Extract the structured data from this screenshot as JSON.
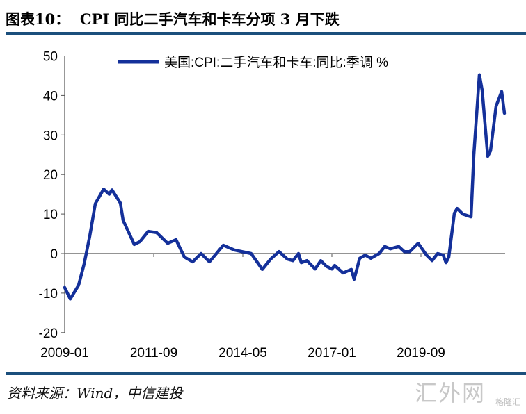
{
  "title": "图表10：  CPI 同比二手汽车和卡车分项 3 月下跌",
  "source": "资料来源：Wind，中信建投",
  "watermark": "汇外网",
  "watermark_sub": "格隆汇",
  "chart_data": {
    "type": "line",
    "title": "",
    "xlabel": "",
    "ylabel": "",
    "ylim": [
      -20,
      50
    ],
    "yticks": [
      50,
      40,
      30,
      20,
      10,
      0,
      -10,
      -20
    ],
    "xticks": [
      "2009-01",
      "2011-09",
      "2014-05",
      "2017-01",
      "2019-09"
    ],
    "xrange": [
      "2009-01",
      "2022-03"
    ],
    "legend_position": "top",
    "grid": false,
    "colors": {
      "line": "#14309a",
      "axis": "#555555",
      "rule": "#1b4f7c"
    },
    "series": [
      {
        "name": "美国:CPI:二手汽车和卡车:同比:季调 %",
        "points": [
          [
            "2009-01",
            -8.6
          ],
          [
            "2009-03",
            -11.5
          ],
          [
            "2009-06",
            -8
          ],
          [
            "2009-08",
            -2.6
          ],
          [
            "2009-10",
            4.4
          ],
          [
            "2009-12",
            12.6
          ],
          [
            "2010-03",
            16.3
          ],
          [
            "2010-05",
            15
          ],
          [
            "2010-06",
            16.1
          ],
          [
            "2010-09",
            12.8
          ],
          [
            "2010-10",
            8.4
          ],
          [
            "2011-02",
            2.3
          ],
          [
            "2011-04",
            3
          ],
          [
            "2011-07",
            5.6
          ],
          [
            "2011-10",
            5.3
          ],
          [
            "2012-02",
            2.6
          ],
          [
            "2012-05",
            3.5
          ],
          [
            "2012-08",
            -0.9
          ],
          [
            "2012-11",
            -2.1
          ],
          [
            "2013-02",
            0
          ],
          [
            "2013-05",
            -2.1
          ],
          [
            "2013-10",
            2.1
          ],
          [
            "2014-02",
            0.9
          ],
          [
            "2014-08",
            0
          ],
          [
            "2014-12",
            -4
          ],
          [
            "2015-03",
            -1.4
          ],
          [
            "2015-06",
            0.5
          ],
          [
            "2015-09",
            -1.4
          ],
          [
            "2015-11",
            -1.8
          ],
          [
            "2016-01",
            0
          ],
          [
            "2016-02",
            -2.3
          ],
          [
            "2016-04",
            -1.8
          ],
          [
            "2016-07",
            -3.9
          ],
          [
            "2016-09",
            -1.8
          ],
          [
            "2016-11",
            -3.2
          ],
          [
            "2017-01",
            -3.9
          ],
          [
            "2017-02",
            -3
          ],
          [
            "2017-05",
            -4.9
          ],
          [
            "2017-08",
            -4
          ],
          [
            "2017-09",
            -6.5
          ],
          [
            "2017-11",
            -1.2
          ],
          [
            "2018-01",
            -0.4
          ],
          [
            "2018-03",
            -1.2
          ],
          [
            "2018-06",
            0
          ],
          [
            "2018-08",
            1.8
          ],
          [
            "2018-10",
            1.2
          ],
          [
            "2019-01",
            1.8
          ],
          [
            "2019-03",
            0.5
          ],
          [
            "2019-05",
            0.5
          ],
          [
            "2019-08",
            2.6
          ],
          [
            "2019-11",
            -0.4
          ],
          [
            "2020-01",
            -1.8
          ],
          [
            "2020-03",
            0
          ],
          [
            "2020-05",
            -0.4
          ],
          [
            "2020-06",
            -2.3
          ],
          [
            "2020-07",
            -0.9
          ],
          [
            "2020-09",
            10.2
          ],
          [
            "2020-10",
            11.4
          ],
          [
            "2020-12",
            10
          ],
          [
            "2021-03",
            9.3
          ],
          [
            "2021-04",
            25
          ],
          [
            "2021-06",
            45.2
          ],
          [
            "2021-07",
            41.3
          ],
          [
            "2021-09",
            24.6
          ],
          [
            "2021-10",
            26
          ],
          [
            "2021-12",
            37.3
          ],
          [
            "2022-02",
            41
          ],
          [
            "2022-03",
            35.5
          ]
        ]
      }
    ]
  }
}
